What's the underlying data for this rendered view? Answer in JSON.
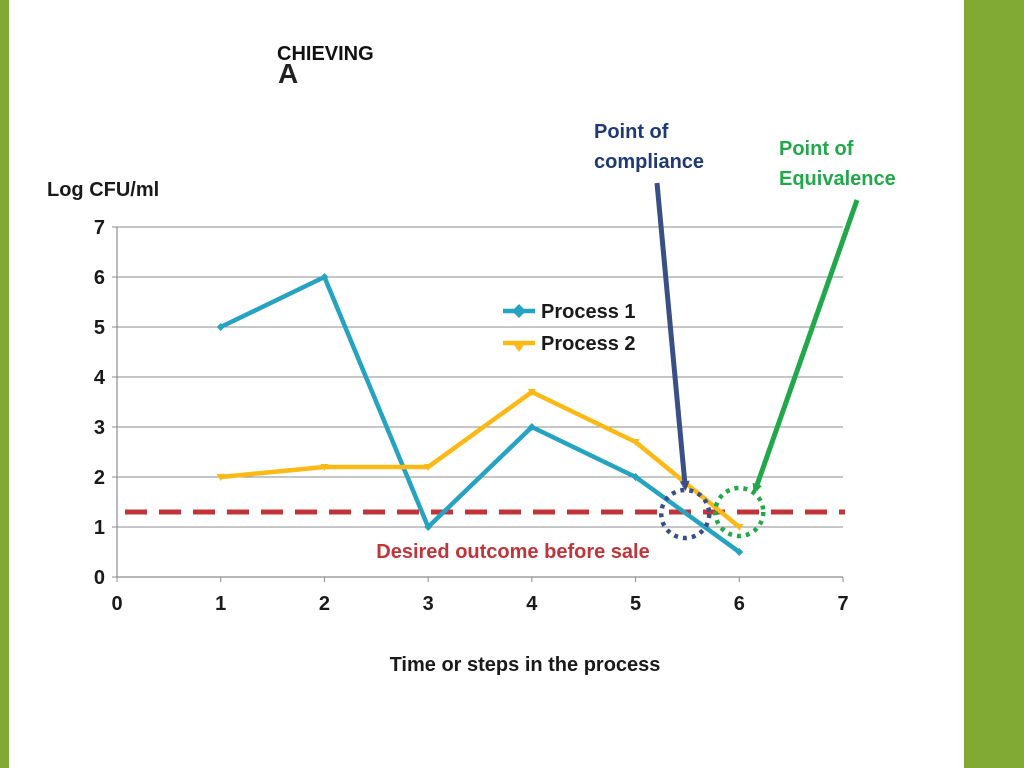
{
  "header": {
    "title_main": "A",
    "title_sup": "CHIEVING"
  },
  "annotations": {
    "compliance": "Point of compliance",
    "equivalence": "Point of Equivalence",
    "desired": "Desired outcome before sale"
  },
  "colors": {
    "accent_bar": "#80aa34",
    "process1": "#25a3c1",
    "process2": "#fbb916",
    "threshold": "#c0353a",
    "compliance": "#3a4f86",
    "equivalence": "#22a84a"
  },
  "chart_data": {
    "type": "line",
    "title": "",
    "xlabel": "Time or steps in the process",
    "ylabel": "Log CFU/ml",
    "xlim": [
      0,
      7
    ],
    "ylim": [
      0,
      7
    ],
    "xticks": [
      0,
      1,
      2,
      3,
      4,
      5,
      6,
      7
    ],
    "yticks": [
      0,
      1,
      2,
      3,
      4,
      5,
      6,
      7
    ],
    "grid": true,
    "legend_position": "center",
    "series": [
      {
        "name": "Process 1",
        "marker": "diamond",
        "x": [
          1,
          2,
          3,
          4,
          5,
          6
        ],
        "y": [
          5,
          6,
          1,
          3,
          2,
          0.5
        ]
      },
      {
        "name": "Process 2",
        "marker": "triangle-down",
        "x": [
          1,
          2,
          3,
          4,
          5,
          6
        ],
        "y": [
          2,
          2.2,
          2.2,
          3.7,
          2.7,
          1
        ]
      }
    ],
    "threshold": {
      "y": 1.3,
      "label": "Desired outcome before sale",
      "style": "dashed"
    },
    "markers": [
      {
        "label": "Point of compliance",
        "x": 5.45,
        "y": 1.3
      },
      {
        "label": "Point of Equivalence",
        "x": 6.0,
        "y": 1.3
      }
    ]
  }
}
